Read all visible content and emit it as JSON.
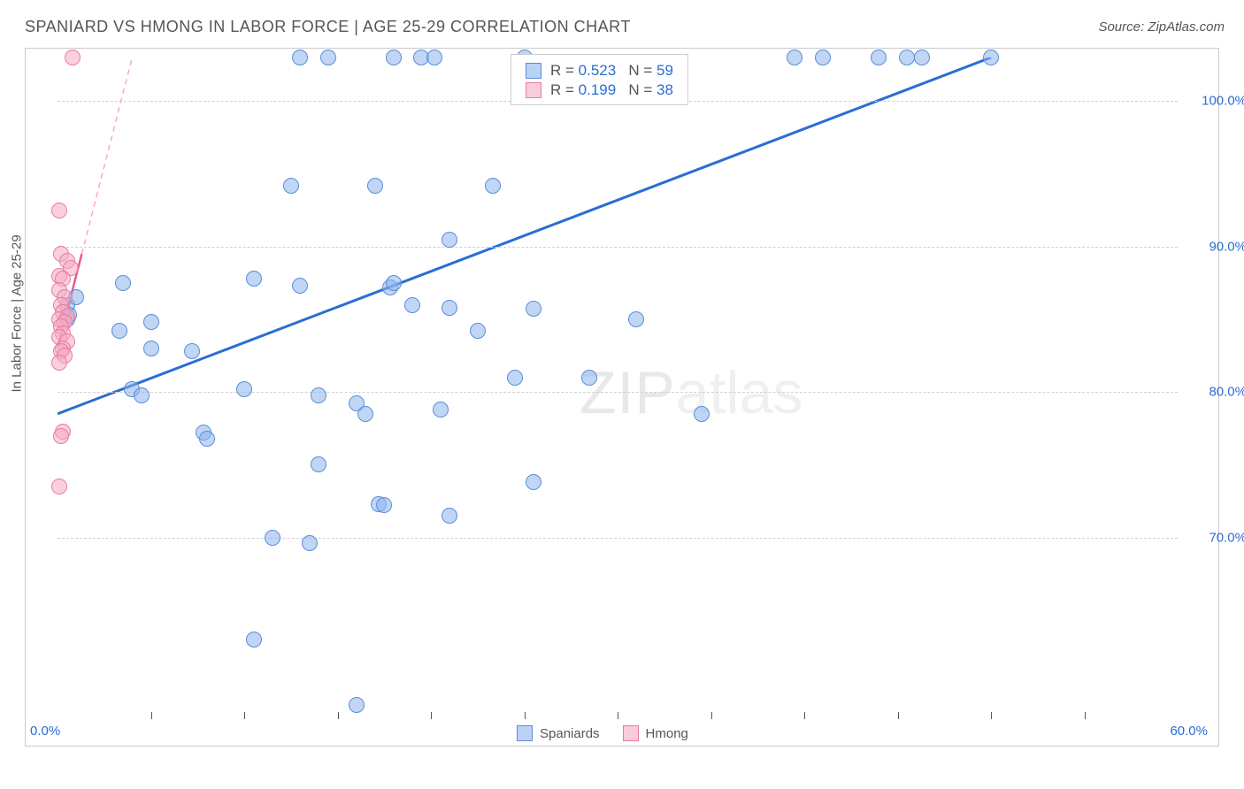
{
  "title": "SPANIARD VS HMONG IN LABOR FORCE | AGE 25-29 CORRELATION CHART",
  "source": "Source: ZipAtlas.com",
  "ylabel": "In Labor Force | Age 25-29",
  "watermark": {
    "part1": "ZIP",
    "part2": "atlas"
  },
  "chart": {
    "type": "scatter",
    "background_color": "#ffffff",
    "border_color": "#cccccc",
    "grid_color": "#d0d0d0",
    "grid_dash": true,
    "xlim": [
      0,
      60
    ],
    "ylim": [
      58,
      103
    ],
    "xaxis": {
      "label_left": "0.0%",
      "label_right": "60.0%",
      "label_color": "#2a6dd4",
      "ticks": [
        5,
        10,
        15,
        20,
        25,
        30,
        35,
        40,
        45,
        50,
        55
      ]
    },
    "yaxis": {
      "ticks": [
        70,
        80,
        90,
        100
      ],
      "tick_labels": [
        "70.0%",
        "80.0%",
        "90.0%",
        "100.0%"
      ],
      "label_color": "#2a6dd4",
      "label_fontsize": 15
    },
    "point_radius": 9,
    "point_opacity": 0.55,
    "series": [
      {
        "name": "Spaniards",
        "color_fill": "#8cb4eb",
        "color_stroke": "#5a8ed8",
        "regression": {
          "x1": 0,
          "y1": 78.5,
          "x2": 50,
          "y2": 103,
          "color": "#2a6dd4",
          "width": 3,
          "dash": false
        },
        "points": [
          [
            0.5,
            86
          ],
          [
            0.5,
            85
          ],
          [
            1.0,
            86.5
          ],
          [
            13.0,
            103
          ],
          [
            14.5,
            103
          ],
          [
            18.0,
            103
          ],
          [
            19.5,
            103
          ],
          [
            20.2,
            103
          ],
          [
            25.0,
            103
          ],
          [
            39.5,
            103
          ],
          [
            41.0,
            103
          ],
          [
            44.0,
            103
          ],
          [
            45.5,
            103
          ],
          [
            46.3,
            103
          ],
          [
            50.0,
            103
          ],
          [
            12.5,
            94.2
          ],
          [
            17.0,
            94.2
          ],
          [
            23.3,
            94.2
          ],
          [
            21.0,
            90.5
          ],
          [
            0.6,
            85.3
          ],
          [
            3.5,
            87.5
          ],
          [
            5.0,
            84.8
          ],
          [
            10.5,
            87.8
          ],
          [
            13.0,
            87.3
          ],
          [
            17.8,
            87.2
          ],
          [
            18.0,
            87.5
          ],
          [
            19.0,
            86.0
          ],
          [
            21.0,
            85.8
          ],
          [
            25.5,
            85.7
          ],
          [
            31.0,
            85.0
          ],
          [
            3.3,
            84.2
          ],
          [
            5.0,
            83.0
          ],
          [
            7.2,
            82.8
          ],
          [
            22.5,
            84.2
          ],
          [
            4.0,
            80.2
          ],
          [
            4.5,
            79.8
          ],
          [
            10.0,
            80.2
          ],
          [
            14.0,
            79.8
          ],
          [
            16.0,
            79.2
          ],
          [
            16.5,
            78.5
          ],
          [
            24.5,
            81.0
          ],
          [
            28.5,
            81.0
          ],
          [
            7.8,
            77.2
          ],
          [
            8.0,
            76.8
          ],
          [
            20.5,
            78.8
          ],
          [
            34.5,
            78.5
          ],
          [
            14.0,
            75.0
          ],
          [
            17.2,
            72.3
          ],
          [
            25.5,
            73.8
          ],
          [
            21.0,
            71.5
          ],
          [
            11.5,
            70.0
          ],
          [
            13.5,
            69.6
          ],
          [
            17.5,
            72.2
          ],
          [
            10.5,
            63.0
          ],
          [
            16.0,
            58.5
          ]
        ]
      },
      {
        "name": "Hmong",
        "color_fill": "#f5aac3",
        "color_stroke": "#e87ba5",
        "regression": {
          "x1": 0,
          "y1": 83,
          "x2": 1.3,
          "y2": 89.5,
          "color": "#e55b8f",
          "width": 2.5,
          "dash": false
        },
        "regression_ext": {
          "x1": 1.3,
          "y1": 89.5,
          "x2": 4.0,
          "y2": 103,
          "color": "#f5aac3",
          "width": 1.5,
          "dash": true
        },
        "points": [
          [
            0.8,
            103
          ],
          [
            0.1,
            92.5
          ],
          [
            0.2,
            89.5
          ],
          [
            0.5,
            89.0
          ],
          [
            0.7,
            88.5
          ],
          [
            0.1,
            88.0
          ],
          [
            0.3,
            87.8
          ],
          [
            0.1,
            87.0
          ],
          [
            0.4,
            86.5
          ],
          [
            0.2,
            86.0
          ],
          [
            0.3,
            85.5
          ],
          [
            0.5,
            85.2
          ],
          [
            0.1,
            85.0
          ],
          [
            0.4,
            84.8
          ],
          [
            0.2,
            84.5
          ],
          [
            0.3,
            84.0
          ],
          [
            0.1,
            83.8
          ],
          [
            0.5,
            83.5
          ],
          [
            0.3,
            83.0
          ],
          [
            0.2,
            82.8
          ],
          [
            0.4,
            82.5
          ],
          [
            0.1,
            82.0
          ],
          [
            0.3,
            77.3
          ],
          [
            0.2,
            77.0
          ],
          [
            0.1,
            73.5
          ]
        ]
      }
    ],
    "stat_box": {
      "rows": [
        {
          "swatch": "blue",
          "r_label": "R = ",
          "r": "0.523",
          "n_label": "   N = ",
          "n": "59"
        },
        {
          "swatch": "pink",
          "r_label": "R = ",
          "r": "0.199",
          "n_label": "   N = ",
          "n": "38"
        }
      ],
      "fontsize": 17,
      "border_color": "#cccccc",
      "bg_color": "#ffffff",
      "value_color": "#2a6dd4"
    },
    "legend_bottom": {
      "items": [
        {
          "swatch": "blue",
          "label": "Spaniards"
        },
        {
          "swatch": "pink",
          "label": "Hmong"
        }
      ]
    }
  }
}
